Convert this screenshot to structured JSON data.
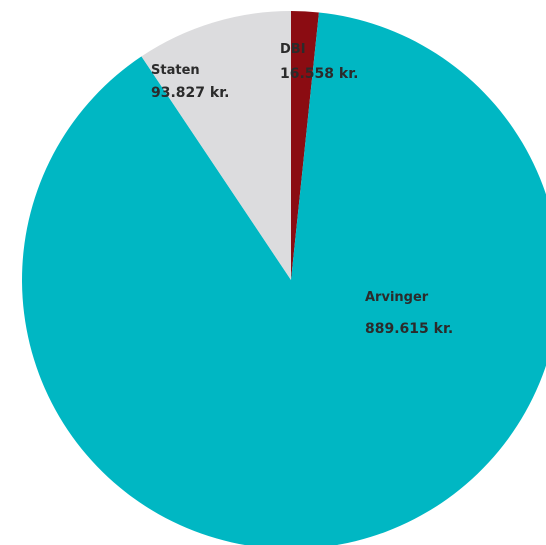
{
  "chart_data": {
    "type": "pie",
    "title": "",
    "slices": [
      {
        "name": "DBI",
        "value": 16558,
        "value_label": "16.558 kr.",
        "color": "#8b0c12"
      },
      {
        "name": "Arvinger",
        "value": 889615,
        "value_label": "889.615 kr.",
        "color": "#00b7c3"
      },
      {
        "name": "Staten",
        "value": 93827,
        "value_label": "93.827 kr.",
        "color": "#dcdcde"
      }
    ],
    "start_angle": "12 o'clock",
    "direction": "clockwise",
    "legend": "none"
  }
}
